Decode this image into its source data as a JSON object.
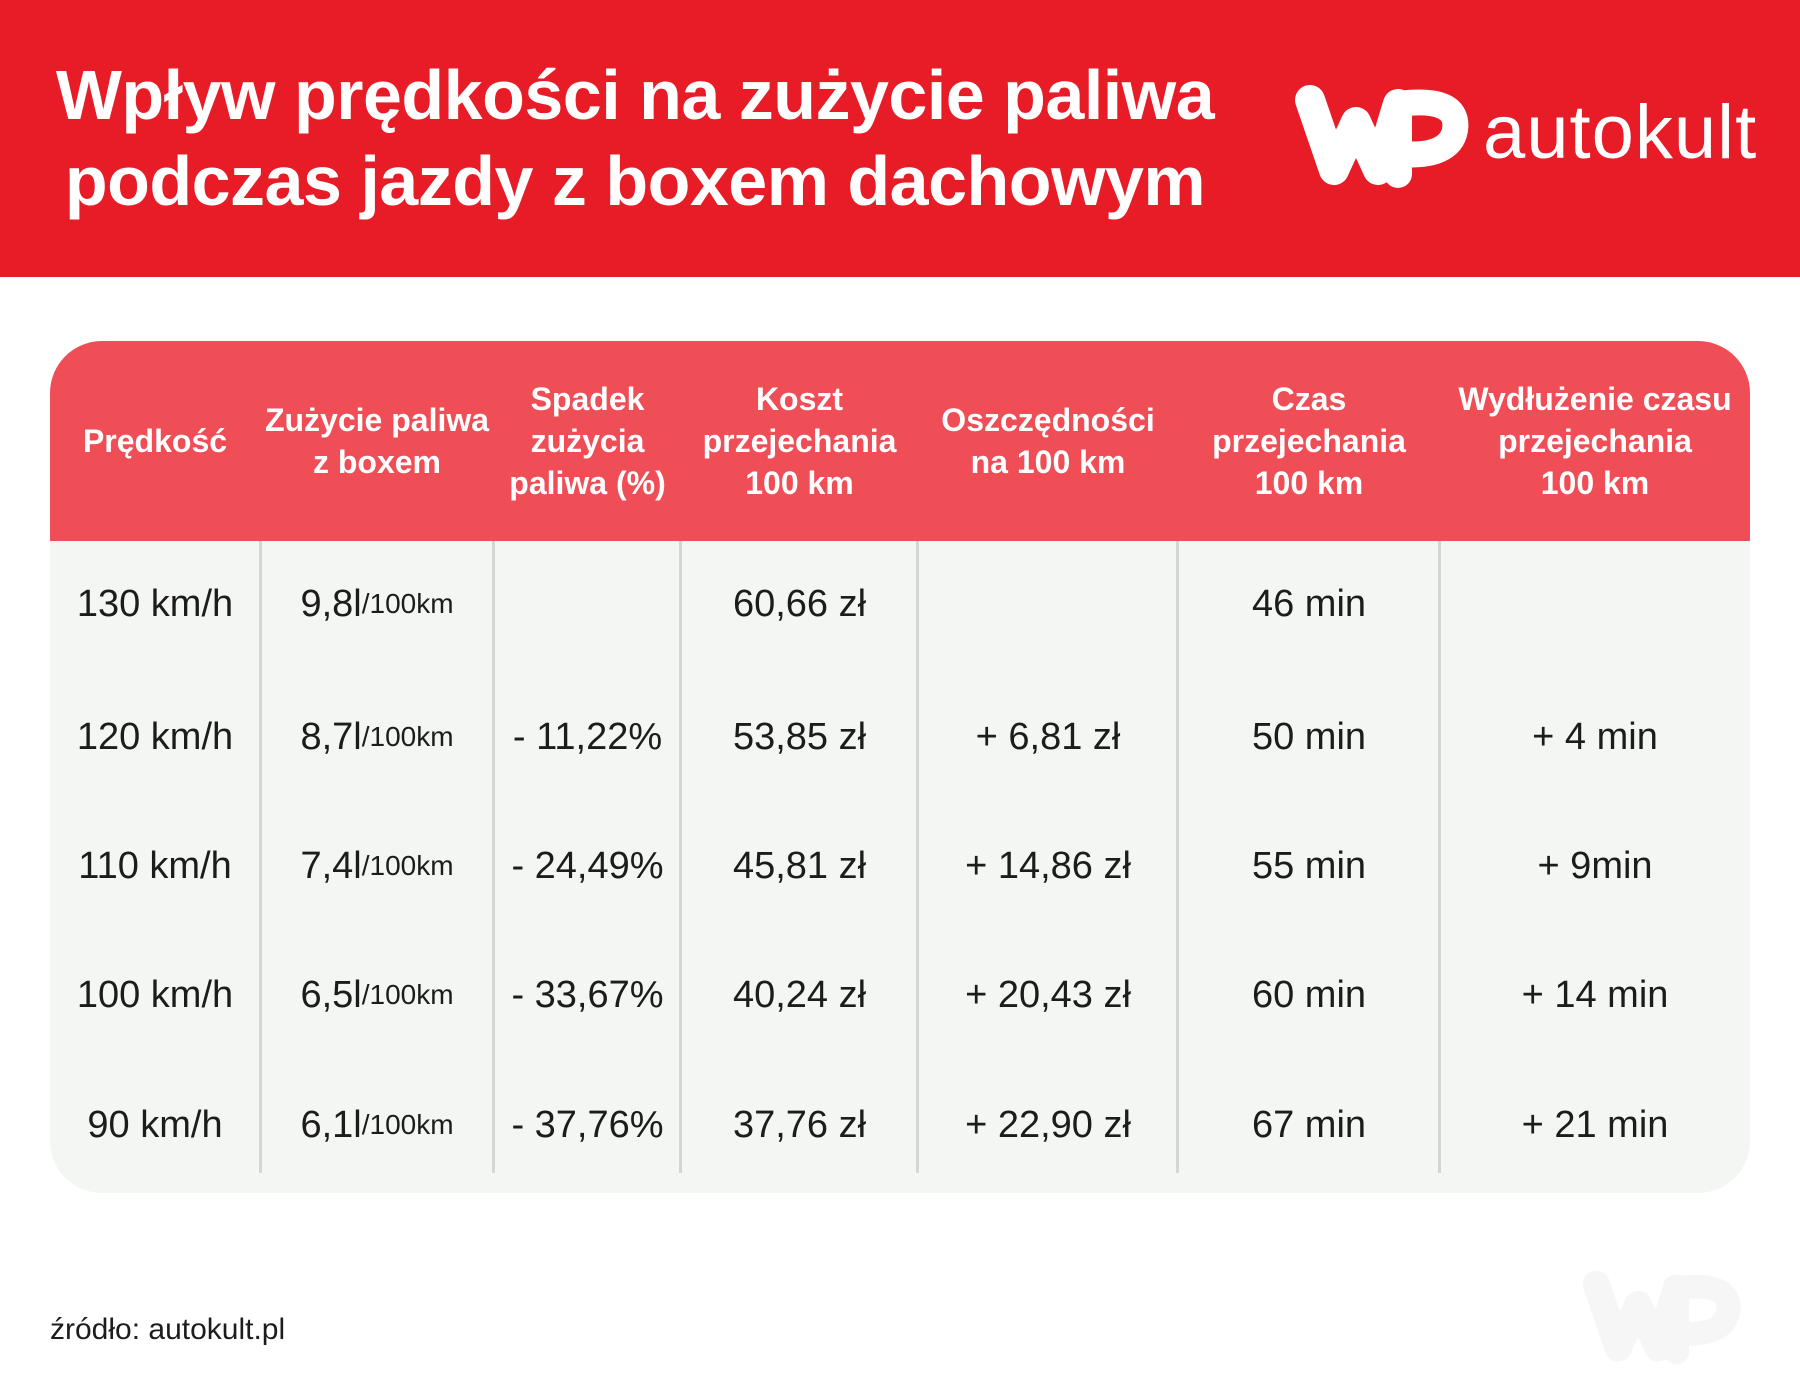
{
  "header": {
    "title_lines": [
      "Wpływ prędkości na zużycie paliwa",
      "podczas jazdy z boxem dachowym"
    ],
    "logo": {
      "text": "autokult",
      "icon": "wp-logo-icon"
    }
  },
  "table": {
    "columns": [
      "Prędkość",
      "Zużycie paliwa\nz boxem",
      "Spadek\nzużycia\npaliwa (%)",
      "Koszt\nprzejechania\n100 km",
      "Oszczędności\nna 100 km",
      "Czas\nprzejechania\n100 km",
      "Wydłużenie czasu\nprzejechania\n100 km"
    ],
    "rows": [
      {
        "speed": "130 km/h",
        "consumption": "9,8l",
        "consumption_unit": "/100km",
        "drop": "",
        "cost": "60,66 zł",
        "savings": "",
        "time": "46 min",
        "extension": ""
      },
      {
        "speed": "120 km/h",
        "consumption": "8,7l",
        "consumption_unit": "/100km",
        "drop": "-  11,22%",
        "cost": "53,85 zł",
        "savings": "+  6,81 zł",
        "time": "50 min",
        "extension": "+  4 min"
      },
      {
        "speed": "110 km/h",
        "consumption": "7,4l",
        "consumption_unit": "/100km",
        "drop": "-  24,49%",
        "cost": "45,81 zł",
        "savings": "+  14,86 zł",
        "time": "55 min",
        "extension": "+  9min"
      },
      {
        "speed": "100 km/h",
        "consumption": "6,5l",
        "consumption_unit": "/100km",
        "drop": "-  33,67%",
        "cost": "40,24 zł",
        "savings": "+  20,43 zł",
        "time": "60 min",
        "extension": "+  14 min"
      },
      {
        "speed": "90 km/h",
        "consumption": "6,1l",
        "consumption_unit": "/100km",
        "drop": "-  37,76%",
        "cost": "37,76 zł",
        "savings": "+  22,90 zł",
        "time": "67 min",
        "extension": "+  21 min"
      }
    ]
  },
  "footer": {
    "source": "źródło: autokult.pl"
  },
  "colors": {
    "banner": "#e81c27",
    "table_header": "#f04e57",
    "table_body": "#f3f6f2",
    "text": "#1c1c1c"
  }
}
